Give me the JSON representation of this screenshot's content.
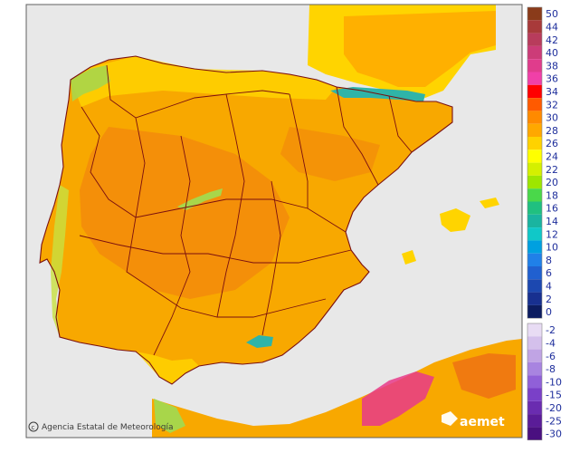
{
  "colors": {
    "sea": "#e8e8e8",
    "land_base": "#f8a800",
    "land_warm": "#f07a10",
    "land_mild": "#ffd400",
    "land_cool": "#a8d64a",
    "mountain": "#2fb4a8",
    "boundary": "#7a0f0f",
    "africa_hot": "#e83a8a"
  },
  "legend": {
    "warm_scale": [
      {
        "value": "50",
        "color": "#8a3b1a"
      },
      {
        "value": "44",
        "color": "#a83a3a"
      },
      {
        "value": "42",
        "color": "#b83c5c"
      },
      {
        "value": "40",
        "color": "#cc3c78"
      },
      {
        "value": "38",
        "color": "#e03c8c"
      },
      {
        "value": "36",
        "color": "#f040a8"
      },
      {
        "value": "34",
        "color": "#ff0000"
      },
      {
        "value": "32",
        "color": "#ff5a00"
      },
      {
        "value": "30",
        "color": "#ff8a00"
      },
      {
        "value": "28",
        "color": "#ffa800"
      },
      {
        "value": "26",
        "color": "#ffd200"
      },
      {
        "value": "24",
        "color": "#ffff00"
      },
      {
        "value": "22",
        "color": "#d4f000"
      },
      {
        "value": "20",
        "color": "#9ee600"
      },
      {
        "value": "18",
        "color": "#4ad84a"
      },
      {
        "value": "16",
        "color": "#20c080"
      },
      {
        "value": "14",
        "color": "#1ab4a0"
      },
      {
        "value": "12",
        "color": "#10c8c8"
      },
      {
        "value": "10",
        "color": "#00a0e0"
      },
      {
        "value": "8",
        "color": "#2080e8"
      },
      {
        "value": "6",
        "color": "#2060d0"
      },
      {
        "value": "4",
        "color": "#1c48b0"
      },
      {
        "value": "2",
        "color": "#183090"
      },
      {
        "value": "0",
        "color": "#0c1c60"
      }
    ],
    "cold_scale": [
      {
        "value": "-2",
        "color": "#e8dcf4"
      },
      {
        "value": "-4",
        "color": "#d4c0ec"
      },
      {
        "value": "-6",
        "color": "#c0a4e4"
      },
      {
        "value": "-8",
        "color": "#a884e0"
      },
      {
        "value": "-10",
        "color": "#9060d8"
      },
      {
        "value": "-15",
        "color": "#7a40c8"
      },
      {
        "value": "-20",
        "color": "#6a2cb0"
      },
      {
        "value": "-25",
        "color": "#5a1c98"
      },
      {
        "value": "-30",
        "color": "#4a1080"
      }
    ]
  },
  "credit": "Agencia Estatal de Meteorología",
  "brand": "aemet"
}
